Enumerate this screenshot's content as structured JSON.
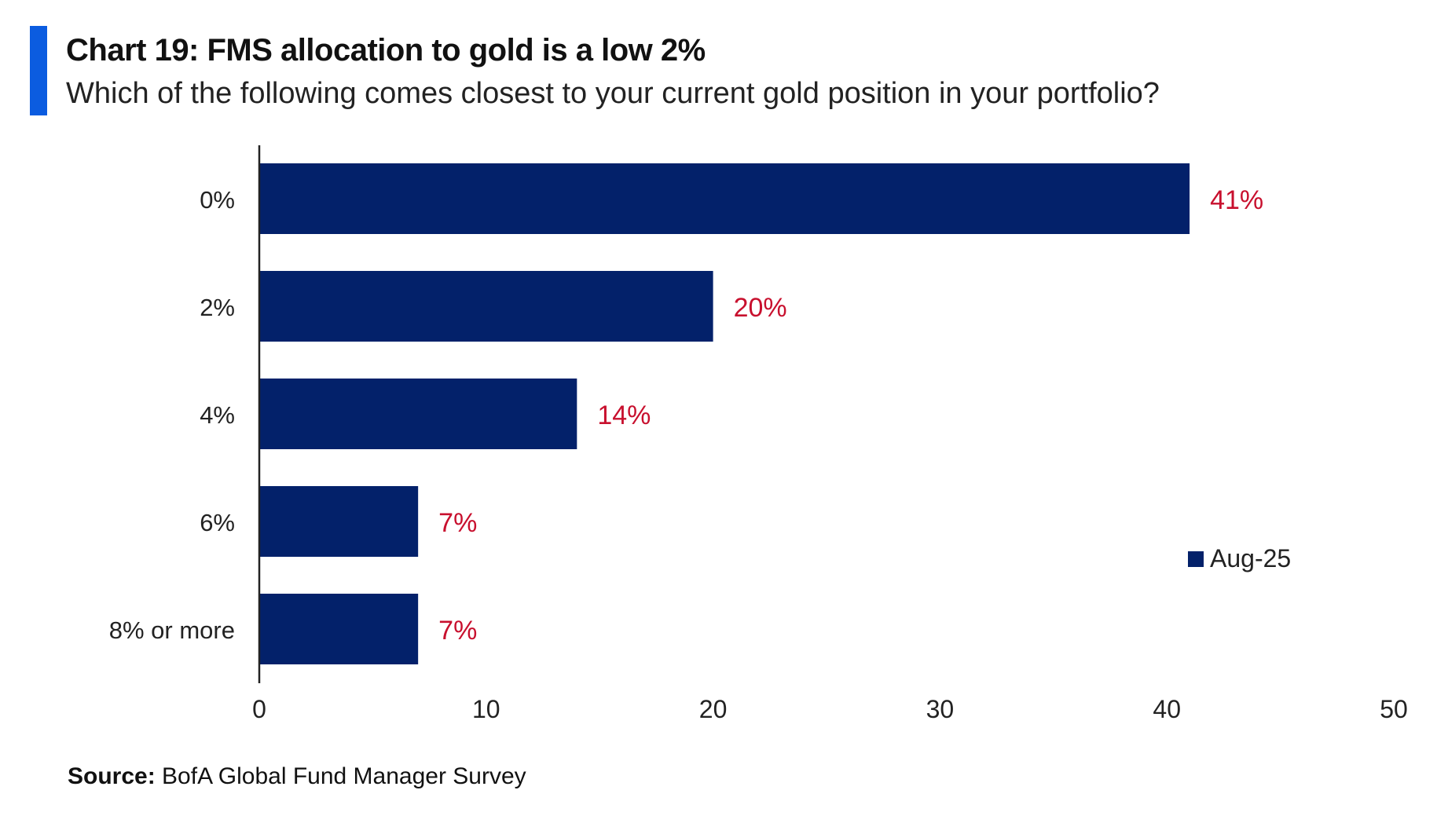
{
  "header": {
    "title": "Chart 19: FMS allocation to gold is a low 2%",
    "subtitle": "Which of the following comes closest to your current gold position in your portfolio?"
  },
  "source": {
    "label": "Source:",
    "text": "BofA Global Fund Manager Survey"
  },
  "colors": {
    "accent": "#0b5ce0",
    "bar": "#03216a",
    "data_label": "#c8102e"
  },
  "chart_data": {
    "type": "bar",
    "orientation": "horizontal",
    "categories": [
      "0%",
      "2%",
      "4%",
      "6%",
      "8% or more"
    ],
    "series": [
      {
        "name": "Aug-25",
        "values": [
          41,
          20,
          14,
          7,
          7
        ],
        "data_labels": [
          "41%",
          "20%",
          "14%",
          "7%",
          "7%"
        ]
      }
    ],
    "xlim": [
      0,
      50
    ],
    "x_ticks": [
      0,
      10,
      20,
      30,
      40,
      50
    ],
    "grid": false,
    "legend_position": "right"
  }
}
